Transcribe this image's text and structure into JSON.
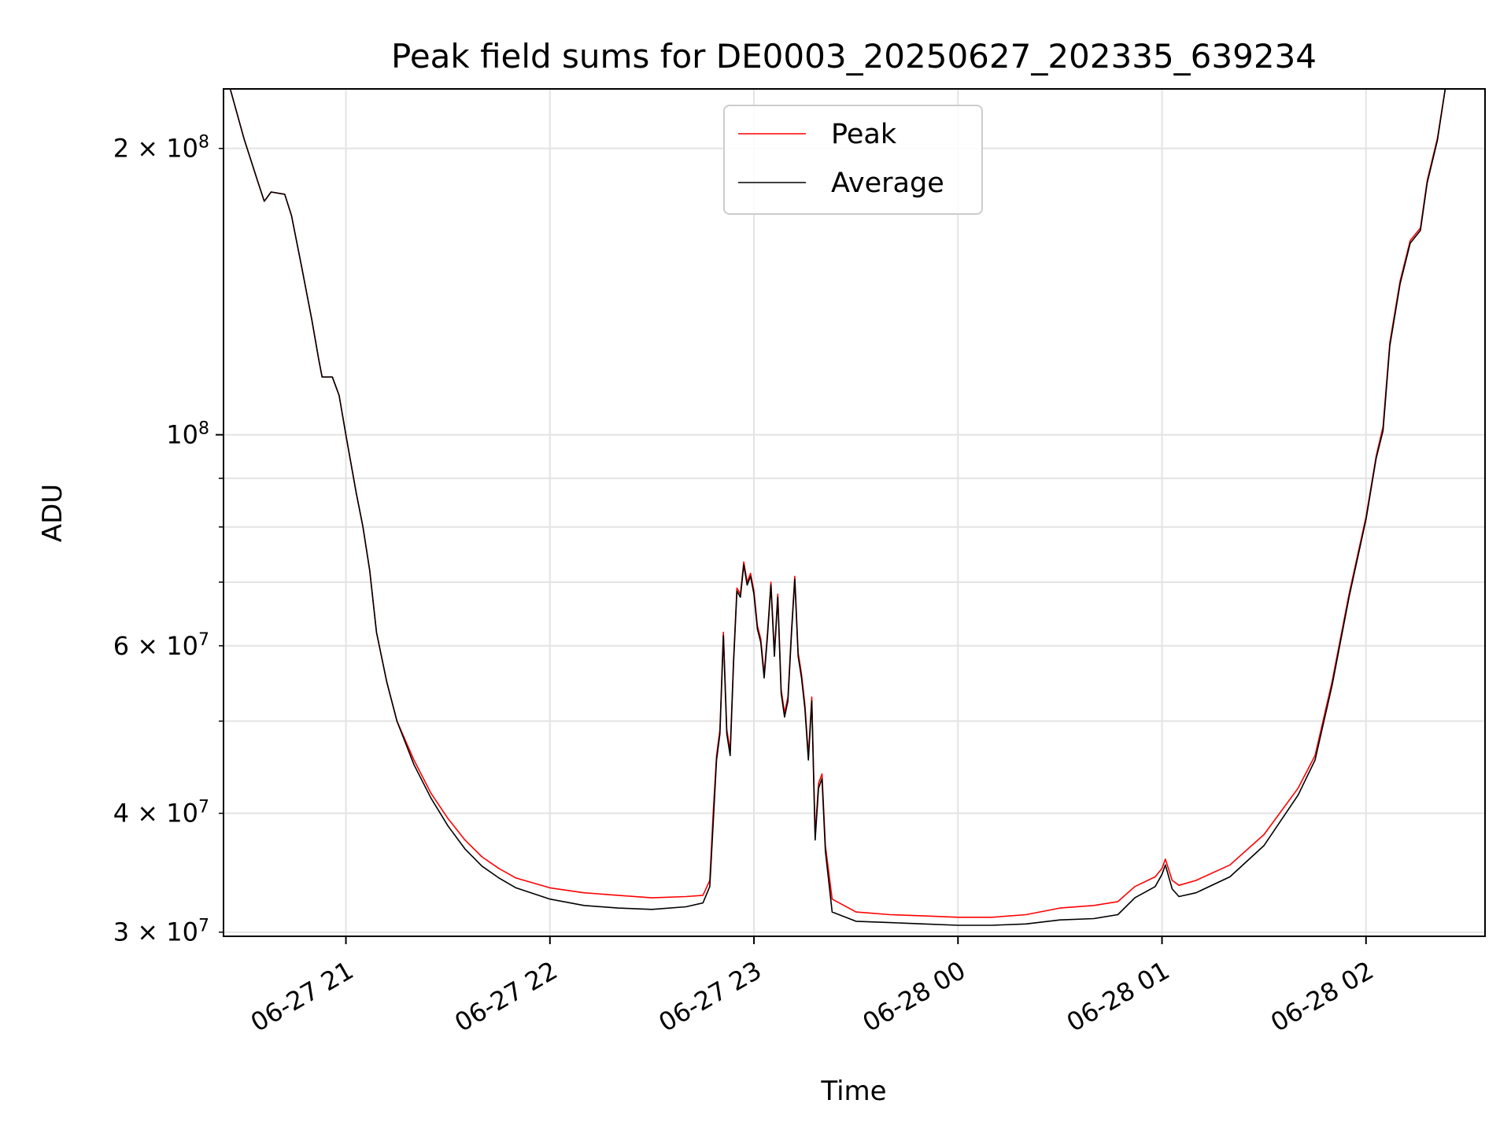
{
  "chart_data": {
    "type": "line",
    "title": "Peak field sums for DE0003_20250627_202335_639234",
    "xlabel": "Time",
    "ylabel": "ADU",
    "y_scale": "log",
    "ylim": [
      29700000,
      231000000
    ],
    "xlim": [
      "2025-06-27 20:24",
      "2025-06-28 02:35"
    ],
    "grid": true,
    "legend_position": "upper center",
    "x_ticks": [
      {
        "t": "2025-06-27 21:00",
        "label": "06-27 21"
      },
      {
        "t": "2025-06-27 22:00",
        "label": "06-27 22"
      },
      {
        "t": "2025-06-27 23:00",
        "label": "06-27 23"
      },
      {
        "t": "2025-06-28 00:00",
        "label": "06-28 00"
      },
      {
        "t": "2025-06-28 01:00",
        "label": "06-28 01"
      },
      {
        "t": "2025-06-28 02:00",
        "label": "06-28 02"
      }
    ],
    "y_ticks_major": [
      {
        "value": 100000000,
        "label_base": "10",
        "label_exp": "8"
      }
    ],
    "y_ticks_minor_labeled": [
      {
        "value": 30000000,
        "label_mant": "3",
        "label_base": "10",
        "label_exp": "7"
      },
      {
        "value": 40000000,
        "label_mant": "4",
        "label_base": "10",
        "label_exp": "7"
      },
      {
        "value": 60000000,
        "label_mant": "6",
        "label_base": "10",
        "label_exp": "7"
      },
      {
        "value": 200000000,
        "label_mant": "2",
        "label_base": "10",
        "label_exp": "8"
      }
    ],
    "y_ticks_minor_unlabeled": [
      50000000,
      70000000,
      80000000,
      90000000
    ],
    "series": [
      {
        "name": "Peak",
        "color": "#ff0000",
        "points": [
          [
            "2025-06-27 20:24",
            245000000
          ],
          [
            "2025-06-27 20:30",
            205000000
          ],
          [
            "2025-06-27 20:34",
            185000000
          ],
          [
            "2025-06-27 20:36",
            176000000
          ],
          [
            "2025-06-27 20:38",
            180000000
          ],
          [
            "2025-06-27 20:42",
            179000000
          ],
          [
            "2025-06-27 20:44",
            170000000
          ],
          [
            "2025-06-27 20:47",
            150000000
          ],
          [
            "2025-06-27 20:50",
            132000000
          ],
          [
            "2025-06-27 20:52",
            120000000
          ],
          [
            "2025-06-27 20:53",
            115000000
          ],
          [
            "2025-06-27 20:56",
            115000000
          ],
          [
            "2025-06-27 20:58",
            110000000
          ],
          [
            "2025-06-27 21:00",
            100000000
          ],
          [
            "2025-06-27 21:03",
            87000000
          ],
          [
            "2025-06-27 21:05",
            80000000
          ],
          [
            "2025-06-27 21:07",
            72000000
          ],
          [
            "2025-06-27 21:09",
            62000000
          ],
          [
            "2025-06-27 21:12",
            55000000
          ],
          [
            "2025-06-27 21:15",
            50000000
          ],
          [
            "2025-06-27 21:20",
            45500000
          ],
          [
            "2025-06-27 21:25",
            42000000
          ],
          [
            "2025-06-27 21:30",
            39500000
          ],
          [
            "2025-06-27 21:35",
            37500000
          ],
          [
            "2025-06-27 21:40",
            36000000
          ],
          [
            "2025-06-27 21:45",
            35000000
          ],
          [
            "2025-06-27 21:50",
            34200000
          ],
          [
            "2025-06-27 22:00",
            33400000
          ],
          [
            "2025-06-27 22:10",
            33000000
          ],
          [
            "2025-06-27 22:20",
            32800000
          ],
          [
            "2025-06-27 22:30",
            32600000
          ],
          [
            "2025-06-27 22:40",
            32700000
          ],
          [
            "2025-06-27 22:45",
            32800000
          ],
          [
            "2025-06-27 22:47",
            34000000
          ],
          [
            "2025-06-27 22:48",
            40000000
          ],
          [
            "2025-06-27 22:49",
            46000000
          ],
          [
            "2025-06-27 22:50",
            49000000
          ],
          [
            "2025-06-27 22:51",
            62000000
          ],
          [
            "2025-06-27 22:52",
            49000000
          ],
          [
            "2025-06-27 22:53",
            46500000
          ],
          [
            "2025-06-27 22:54",
            58000000
          ],
          [
            "2025-06-27 22:55",
            69000000
          ],
          [
            "2025-06-27 22:56",
            68000000
          ],
          [
            "2025-06-27 22:57",
            73500000
          ],
          [
            "2025-06-27 22:58",
            70000000
          ],
          [
            "2025-06-27 22:59",
            71500000
          ],
          [
            "2025-06-27 23:00",
            68500000
          ],
          [
            "2025-06-27 23:01",
            63000000
          ],
          [
            "2025-06-27 23:02",
            61000000
          ],
          [
            "2025-06-27 23:03",
            56000000
          ],
          [
            "2025-06-27 23:04",
            62000000
          ],
          [
            "2025-06-27 23:05",
            70000000
          ],
          [
            "2025-06-27 23:06",
            59000000
          ],
          [
            "2025-06-27 23:07",
            68000000
          ],
          [
            "2025-06-27 23:08",
            54000000
          ],
          [
            "2025-06-27 23:09",
            51000000
          ],
          [
            "2025-06-27 23:10",
            53000000
          ],
          [
            "2025-06-27 23:11",
            62000000
          ],
          [
            "2025-06-27 23:12",
            71000000
          ],
          [
            "2025-06-27 23:13",
            59000000
          ],
          [
            "2025-06-27 23:14",
            56000000
          ],
          [
            "2025-06-27 23:15",
            52000000
          ],
          [
            "2025-06-27 23:16",
            46000000
          ],
          [
            "2025-06-27 23:17",
            53000000
          ],
          [
            "2025-06-27 23:18",
            38000000
          ],
          [
            "2025-06-27 23:19",
            43000000
          ],
          [
            "2025-06-27 23:20",
            44000000
          ],
          [
            "2025-06-27 23:21",
            37000000
          ],
          [
            "2025-06-27 23:23",
            32500000
          ],
          [
            "2025-06-27 23:30",
            31500000
          ],
          [
            "2025-06-27 23:40",
            31300000
          ],
          [
            "2025-06-27 23:50",
            31200000
          ],
          [
            "2025-06-28 00:00",
            31100000
          ],
          [
            "2025-06-28 00:10",
            31100000
          ],
          [
            "2025-06-28 00:20",
            31300000
          ],
          [
            "2025-06-28 00:30",
            31800000
          ],
          [
            "2025-06-28 00:40",
            32000000
          ],
          [
            "2025-06-28 00:47",
            32300000
          ],
          [
            "2025-06-28 00:52",
            33500000
          ],
          [
            "2025-06-28 00:58",
            34300000
          ],
          [
            "2025-06-28 01:00",
            35000000
          ],
          [
            "2025-06-28 01:01",
            35800000
          ],
          [
            "2025-06-28 01:03",
            34000000
          ],
          [
            "2025-06-28 01:05",
            33600000
          ],
          [
            "2025-06-28 01:10",
            34000000
          ],
          [
            "2025-06-28 01:20",
            35300000
          ],
          [
            "2025-06-28 01:30",
            38000000
          ],
          [
            "2025-06-28 01:40",
            42500000
          ],
          [
            "2025-06-28 01:45",
            46000000
          ],
          [
            "2025-06-28 01:50",
            55000000
          ],
          [
            "2025-06-28 01:55",
            68000000
          ],
          [
            "2025-06-28 02:00",
            82000000
          ],
          [
            "2025-06-28 02:03",
            95000000
          ],
          [
            "2025-06-28 02:05",
            102000000
          ],
          [
            "2025-06-28 02:07",
            125000000
          ],
          [
            "2025-06-28 02:10",
            145000000
          ],
          [
            "2025-06-28 02:13",
            160000000
          ],
          [
            "2025-06-28 02:16",
            165000000
          ],
          [
            "2025-06-28 02:18",
            185000000
          ],
          [
            "2025-06-28 02:21",
            205000000
          ],
          [
            "2025-06-28 02:24",
            240000000
          ]
        ]
      },
      {
        "name": "Average",
        "color": "#000000",
        "points": [
          [
            "2025-06-27 20:24",
            245000000
          ],
          [
            "2025-06-27 20:30",
            205000000
          ],
          [
            "2025-06-27 20:34",
            185000000
          ],
          [
            "2025-06-27 20:36",
            176000000
          ],
          [
            "2025-06-27 20:38",
            180000000
          ],
          [
            "2025-06-27 20:42",
            179000000
          ],
          [
            "2025-06-27 20:44",
            170000000
          ],
          [
            "2025-06-27 20:47",
            150000000
          ],
          [
            "2025-06-27 20:50",
            132000000
          ],
          [
            "2025-06-27 20:52",
            120000000
          ],
          [
            "2025-06-27 20:53",
            115000000
          ],
          [
            "2025-06-27 20:56",
            115000000
          ],
          [
            "2025-06-27 20:58",
            110000000
          ],
          [
            "2025-06-27 21:00",
            100000000
          ],
          [
            "2025-06-27 21:03",
            87000000
          ],
          [
            "2025-06-27 21:05",
            80000000
          ],
          [
            "2025-06-27 21:07",
            72000000
          ],
          [
            "2025-06-27 21:09",
            62000000
          ],
          [
            "2025-06-27 21:12",
            55000000
          ],
          [
            "2025-06-27 21:15",
            50000000
          ],
          [
            "2025-06-27 21:20",
            45000000
          ],
          [
            "2025-06-27 21:25",
            41500000
          ],
          [
            "2025-06-27 21:30",
            38800000
          ],
          [
            "2025-06-27 21:35",
            36700000
          ],
          [
            "2025-06-27 21:40",
            35200000
          ],
          [
            "2025-06-27 21:45",
            34200000
          ],
          [
            "2025-06-27 21:50",
            33400000
          ],
          [
            "2025-06-27 22:00",
            32500000
          ],
          [
            "2025-06-27 22:10",
            32000000
          ],
          [
            "2025-06-27 22:20",
            31800000
          ],
          [
            "2025-06-27 22:30",
            31700000
          ],
          [
            "2025-06-27 22:40",
            31900000
          ],
          [
            "2025-06-27 22:45",
            32200000
          ],
          [
            "2025-06-27 22:47",
            33500000
          ],
          [
            "2025-06-27 22:48",
            39000000
          ],
          [
            "2025-06-27 22:49",
            45500000
          ],
          [
            "2025-06-27 22:50",
            48500000
          ],
          [
            "2025-06-27 22:51",
            61500000
          ],
          [
            "2025-06-27 22:52",
            48500000
          ],
          [
            "2025-06-27 22:53",
            46000000
          ],
          [
            "2025-06-27 22:54",
            57500000
          ],
          [
            "2025-06-27 22:55",
            68500000
          ],
          [
            "2025-06-27 22:56",
            67500000
          ],
          [
            "2025-06-27 22:57",
            73000000
          ],
          [
            "2025-06-27 22:58",
            69500000
          ],
          [
            "2025-06-27 22:59",
            71000000
          ],
          [
            "2025-06-27 23:00",
            68000000
          ],
          [
            "2025-06-27 23:01",
            62500000
          ],
          [
            "2025-06-27 23:02",
            60500000
          ],
          [
            "2025-06-27 23:03",
            55500000
          ],
          [
            "2025-06-27 23:04",
            61500000
          ],
          [
            "2025-06-27 23:05",
            69500000
          ],
          [
            "2025-06-27 23:06",
            58500000
          ],
          [
            "2025-06-27 23:07",
            67500000
          ],
          [
            "2025-06-27 23:08",
            53500000
          ],
          [
            "2025-06-27 23:09",
            50500000
          ],
          [
            "2025-06-27 23:10",
            52500000
          ],
          [
            "2025-06-27 23:11",
            61500000
          ],
          [
            "2025-06-27 23:12",
            70500000
          ],
          [
            "2025-06-27 23:13",
            58500000
          ],
          [
            "2025-06-27 23:14",
            55500000
          ],
          [
            "2025-06-27 23:15",
            51500000
          ],
          [
            "2025-06-27 23:16",
            45500000
          ],
          [
            "2025-06-27 23:17",
            52500000
          ],
          [
            "2025-06-27 23:18",
            37500000
          ],
          [
            "2025-06-27 23:19",
            42500000
          ],
          [
            "2025-06-27 23:20",
            43500000
          ],
          [
            "2025-06-27 23:21",
            36500000
          ],
          [
            "2025-06-27 23:23",
            31500000
          ],
          [
            "2025-06-27 23:30",
            30800000
          ],
          [
            "2025-06-27 23:40",
            30700000
          ],
          [
            "2025-06-27 23:50",
            30600000
          ],
          [
            "2025-06-28 00:00",
            30500000
          ],
          [
            "2025-06-28 00:10",
            30500000
          ],
          [
            "2025-06-28 00:20",
            30600000
          ],
          [
            "2025-06-28 00:30",
            30900000
          ],
          [
            "2025-06-28 00:40",
            31000000
          ],
          [
            "2025-06-28 00:47",
            31300000
          ],
          [
            "2025-06-28 00:52",
            32600000
          ],
          [
            "2025-06-28 00:58",
            33500000
          ],
          [
            "2025-06-28 01:00",
            34500000
          ],
          [
            "2025-06-28 01:01",
            35300000
          ],
          [
            "2025-06-28 01:03",
            33300000
          ],
          [
            "2025-06-28 01:05",
            32700000
          ],
          [
            "2025-06-28 01:10",
            33000000
          ],
          [
            "2025-06-28 01:20",
            34300000
          ],
          [
            "2025-06-28 01:30",
            37000000
          ],
          [
            "2025-06-28 01:40",
            41800000
          ],
          [
            "2025-06-28 01:45",
            45500000
          ],
          [
            "2025-06-28 01:50",
            54500000
          ],
          [
            "2025-06-28 01:55",
            67500000
          ],
          [
            "2025-06-28 02:00",
            81500000
          ],
          [
            "2025-06-28 02:03",
            94500000
          ],
          [
            "2025-06-28 02:05",
            101000000
          ],
          [
            "2025-06-28 02:07",
            124000000
          ],
          [
            "2025-06-28 02:10",
            144000000
          ],
          [
            "2025-06-28 02:13",
            159000000
          ],
          [
            "2025-06-28 02:16",
            164000000
          ],
          [
            "2025-06-28 02:18",
            184000000
          ],
          [
            "2025-06-28 02:21",
            204000000
          ],
          [
            "2025-06-28 02:24",
            240000000
          ]
        ]
      }
    ]
  }
}
